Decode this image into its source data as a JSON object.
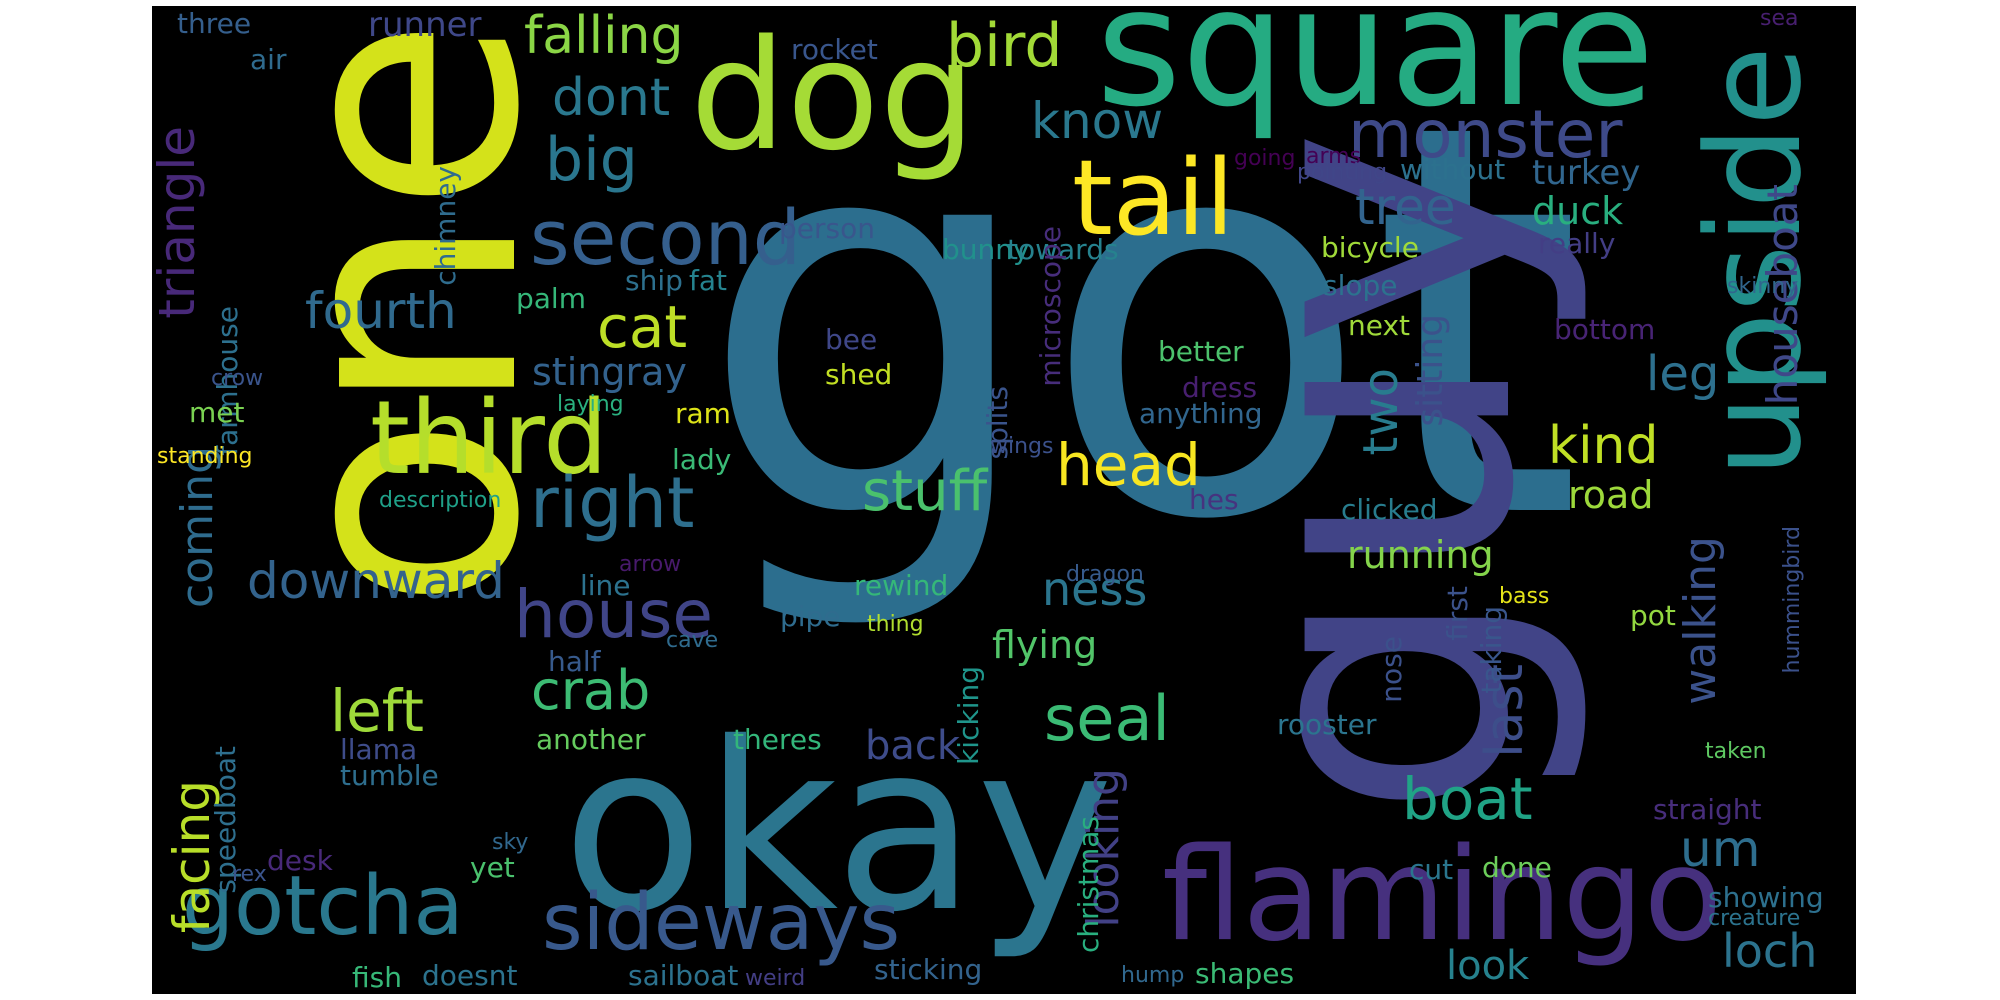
{
  "words": [
    {
      "text": "got",
      "color": "#2c6e8e"
    },
    {
      "text": "one",
      "color": "#d4e21a"
    },
    {
      "text": "guy",
      "color": "#414487"
    },
    {
      "text": "okay",
      "color": "#2b758e"
    },
    {
      "text": "square",
      "color": "#25ab82"
    },
    {
      "text": "dog",
      "color": "#a5db36"
    },
    {
      "text": "upside",
      "color": "#22908c"
    },
    {
      "text": "flamingo",
      "color": "#46307e"
    },
    {
      "text": "third",
      "color": "#b5de2b"
    },
    {
      "text": "tail",
      "color": "#fde725"
    },
    {
      "text": "gotcha",
      "color": "#2a788e"
    },
    {
      "text": "sideways",
      "color": "#38598c"
    },
    {
      "text": "second",
      "color": "#355f8d"
    },
    {
      "text": "right",
      "color": "#2e6f8e"
    },
    {
      "text": "house",
      "color": "#404588"
    },
    {
      "text": "monster",
      "color": "#3e4a89"
    },
    {
      "text": "bird",
      "color": "#a2da37"
    },
    {
      "text": "falling",
      "color": "#8bd646"
    },
    {
      "text": "big",
      "color": "#2a768e"
    },
    {
      "text": "dont",
      "color": "#2a788e"
    },
    {
      "text": "cat",
      "color": "#bddf26"
    },
    {
      "text": "head",
      "color": "#f8e621"
    },
    {
      "text": "stuff",
      "color": "#4ac16d"
    },
    {
      "text": "fourth",
      "color": "#306a8e"
    },
    {
      "text": "downward",
      "color": "#33638d"
    },
    {
      "text": "left",
      "color": "#9fda3a"
    },
    {
      "text": "crab",
      "color": "#3dbc74"
    },
    {
      "text": "seal",
      "color": "#3bbb75"
    },
    {
      "text": "ness",
      "color": "#2b758e"
    },
    {
      "text": "boat",
      "color": "#20a486"
    },
    {
      "text": "loch",
      "color": "#2c738e"
    },
    {
      "text": "um",
      "color": "#2e6e8e"
    },
    {
      "text": "last",
      "color": "#3d4e8a"
    },
    {
      "text": "walking",
      "color": "#3b528b"
    },
    {
      "text": "kind",
      "color": "#c0df25"
    },
    {
      "text": "leg",
      "color": "#2d708e"
    },
    {
      "text": "two",
      "color": "#287c8e"
    },
    {
      "text": "tree",
      "color": "#32648e"
    },
    {
      "text": "know",
      "color": "#2a788e"
    },
    {
      "text": "triangle",
      "color": "#482979"
    },
    {
      "text": "houseboat",
      "color": "#3f4889"
    },
    {
      "text": "facing",
      "color": "#b8de29"
    },
    {
      "text": "coming",
      "color": "#2f6c8e"
    },
    {
      "text": "looking",
      "color": "#424186"
    },
    {
      "text": "stingray",
      "color": "#33628d"
    },
    {
      "text": "running",
      "color": "#84d44b"
    },
    {
      "text": "flying",
      "color": "#52c569"
    },
    {
      "text": "back",
      "color": "#3e4c8a"
    },
    {
      "text": "road",
      "color": "#9dd93b"
    },
    {
      "text": "look",
      "color": "#26828e"
    },
    {
      "text": "sitting",
      "color": "#3b528b"
    },
    {
      "text": "duck",
      "color": "#29af7f"
    },
    {
      "text": "turkey",
      "color": "#31668e"
    },
    {
      "text": "runner",
      "color": "#3f4889"
    },
    {
      "text": "without",
      "color": "#2c718e"
    },
    {
      "text": "bicycle",
      "color": "#a0da39"
    },
    {
      "text": "slope",
      "color": "#2c728e"
    },
    {
      "text": "really",
      "color": "#433e85"
    },
    {
      "text": "next",
      "color": "#9fda3a"
    },
    {
      "text": "bottom",
      "color": "#482475"
    },
    {
      "text": "better",
      "color": "#4cc26c"
    },
    {
      "text": "dress",
      "color": "#481f70"
    },
    {
      "text": "anything",
      "color": "#31668e"
    },
    {
      "text": "hes",
      "color": "#46337f"
    },
    {
      "text": "clicked",
      "color": "#287d8e"
    },
    {
      "text": "rewind",
      "color": "#35b779"
    },
    {
      "text": "pipe",
      "color": "#2f6c8e"
    },
    {
      "text": "thing",
      "color": "#b0dd2f"
    },
    {
      "text": "bee",
      "color": "#3f4788"
    },
    {
      "text": "shed",
      "color": "#c2df23"
    },
    {
      "text": "person",
      "color": "#39568c"
    },
    {
      "text": "bunny",
      "color": "#21918c"
    },
    {
      "text": "towards",
      "color": "#26828e"
    },
    {
      "text": "microscope",
      "color": "#472d7b"
    },
    {
      "text": "splits",
      "color": "#3a548c"
    },
    {
      "text": "wings",
      "color": "#3b518b"
    },
    {
      "text": "ship",
      "color": "#2d708e"
    },
    {
      "text": "fat",
      "color": "#25838e"
    },
    {
      "text": "palm",
      "color": "#35b779"
    },
    {
      "text": "ram",
      "color": "#dde318"
    },
    {
      "text": "lady",
      "color": "#3aba76"
    },
    {
      "text": "laying",
      "color": "#2ab07f"
    },
    {
      "text": "line",
      "color": "#2c728e"
    },
    {
      "text": "half",
      "color": "#375a8c"
    },
    {
      "text": "cave",
      "color": "#2f6b8e"
    },
    {
      "text": "another",
      "color": "#65cb5e"
    },
    {
      "text": "theres",
      "color": "#33b67a"
    },
    {
      "text": "llama",
      "color": "#3e4c8a"
    },
    {
      "text": "tumble",
      "color": "#2e6e8e"
    },
    {
      "text": "speedboat",
      "color": "#2e6f8e"
    },
    {
      "text": "farmhouse",
      "color": "#2d708e"
    },
    {
      "text": "chimney",
      "color": "#2f6c8e"
    },
    {
      "text": "air",
      "color": "#2f6b8e"
    },
    {
      "text": "three",
      "color": "#355f8d"
    },
    {
      "text": "rocket",
      "color": "#39568c"
    },
    {
      "text": "arms",
      "color": "#440154"
    },
    {
      "text": "going",
      "color": "#440154"
    },
    {
      "text": "pointing",
      "color": "#404688"
    },
    {
      "text": "crow",
      "color": "#3a548c"
    },
    {
      "text": "met",
      "color": "#7ad151"
    },
    {
      "text": "standing",
      "color": "#fde725"
    },
    {
      "text": "description",
      "color": "#1fa088"
    },
    {
      "text": "arrow",
      "color": "#481a6c"
    },
    {
      "text": "dragon",
      "color": "#375b8d"
    },
    {
      "text": "kicking",
      "color": "#1f958b"
    },
    {
      "text": "christmas",
      "color": "#29af7f"
    },
    {
      "text": "rooster",
      "color": "#2b758e"
    },
    {
      "text": "nose",
      "color": "#3b518b"
    },
    {
      "text": "first",
      "color": "#3b528b"
    },
    {
      "text": "taking",
      "color": "#39568c"
    },
    {
      "text": "bass",
      "color": "#e5e419"
    },
    {
      "text": "pot",
      "color": "#93d741"
    },
    {
      "text": "hummingbird",
      "color": "#3b518b"
    },
    {
      "text": "taken",
      "color": "#5ec962"
    },
    {
      "text": "straight",
      "color": "#472d7b"
    },
    {
      "text": "cut",
      "color": "#2a768e"
    },
    {
      "text": "done",
      "color": "#6ccd5a"
    },
    {
      "text": "showing",
      "color": "#2d708e"
    },
    {
      "text": "creature",
      "color": "#2c738e"
    },
    {
      "text": "sticking",
      "color": "#33638d"
    },
    {
      "text": "shapes",
      "color": "#3bbb75"
    },
    {
      "text": "hump",
      "color": "#31688e"
    },
    {
      "text": "weird",
      "color": "#433e85"
    },
    {
      "text": "sailboat",
      "color": "#2c728e"
    },
    {
      "text": "doesnt",
      "color": "#2c738e"
    },
    {
      "text": "fish",
      "color": "#37b878"
    },
    {
      "text": "desk",
      "color": "#482979"
    },
    {
      "text": "rex",
      "color": "#3a548c"
    },
    {
      "text": "sky",
      "color": "#31688e"
    },
    {
      "text": "yet",
      "color": "#4ac16d"
    },
    {
      "text": "skinny",
      "color": "#31668e"
    },
    {
      "text": "sea",
      "color": "#481f70"
    }
  ]
}
